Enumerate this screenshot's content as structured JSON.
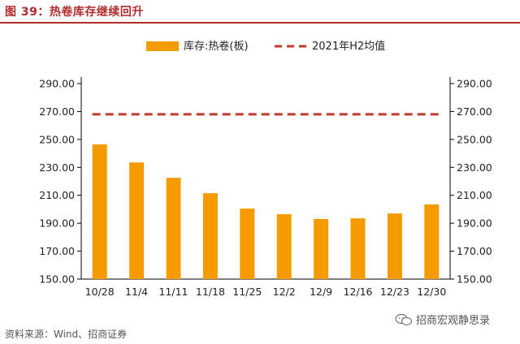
{
  "figure_title": "图 39：热卷库存继续回升",
  "source_note": "资料来源：Wind、招商证券",
  "watermark": "招商宏观静思录",
  "watermark_icon": "wechat-icon",
  "colors": {
    "bar": "#f59b00",
    "avg_line": "#c0392b",
    "title": "#b22b2b"
  },
  "chart_data": {
    "type": "bar",
    "title": "",
    "xlabel": "",
    "ylabel": "",
    "categories": [
      "10/28",
      "11/4",
      "11/11",
      "11/18",
      "11/25",
      "12/2",
      "12/9",
      "12/16",
      "12/23",
      "12/30"
    ],
    "series": [
      {
        "name": "库存:热卷(板)",
        "type": "bar",
        "values": [
          246.5,
          233.5,
          222.5,
          211.5,
          200.5,
          196.5,
          193.0,
          193.5,
          197.0,
          203.5
        ]
      },
      {
        "name": "2021年H2均值",
        "type": "line-dashed",
        "values": [
          268,
          268,
          268,
          268,
          268,
          268,
          268,
          268,
          268,
          268
        ]
      }
    ],
    "ylim": [
      150,
      290
    ],
    "yticks": [
      "150.00",
      "170.00",
      "190.00",
      "210.00",
      "230.00",
      "250.00",
      "270.00",
      "290.00"
    ],
    "ytick_values": [
      150,
      170,
      190,
      210,
      230,
      250,
      270,
      290
    ],
    "secondary_yticks": [
      "150.00",
      "170.00",
      "190.00",
      "210.00",
      "230.00",
      "250.00",
      "270.00",
      "290.00"
    ],
    "grid": false,
    "legend_position": "top"
  }
}
